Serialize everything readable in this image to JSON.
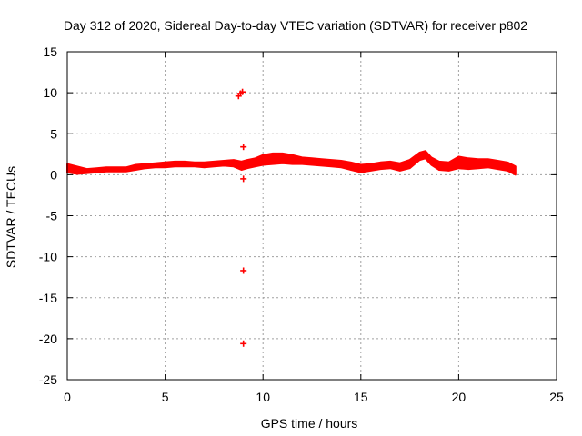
{
  "chart_data": {
    "type": "scatter",
    "title": "Day 312 of 2020, Sidereal Day-to-day VTEC variation (SDTVAR) for receiver p802",
    "xlabel": "GPS time / hours",
    "ylabel": "SDTVAR / TECUs",
    "xlim": [
      0,
      25
    ],
    "ylim": [
      -25,
      15
    ],
    "x_ticks": [
      0,
      5,
      10,
      15,
      20,
      25
    ],
    "y_ticks": [
      -25,
      -20,
      -15,
      -10,
      -5,
      0,
      5,
      10,
      15
    ],
    "x_tick_labels": [
      "0",
      "5",
      "10",
      "15",
      "20",
      "25"
    ],
    "y_tick_labels": [
      "-25",
      "-20",
      "-15",
      "-10",
      "-5",
      "0",
      "5",
      "10",
      "15"
    ],
    "grid": true,
    "marker": "+",
    "series_color": "#ff0000",
    "band": {
      "name": "SDTVAR",
      "x": [
        0.0,
        0.5,
        1.0,
        1.5,
        2.0,
        2.5,
        3.0,
        3.5,
        4.0,
        4.5,
        5.0,
        5.5,
        6.0,
        6.5,
        7.0,
        7.5,
        8.0,
        8.5,
        8.9,
        9.2,
        9.6,
        10.0,
        10.5,
        11.0,
        11.5,
        12.0,
        12.5,
        13.0,
        13.5,
        14.0,
        14.5,
        15.0,
        15.5,
        16.0,
        16.5,
        17.0,
        17.5,
        18.0,
        18.3,
        18.6,
        19.0,
        19.5,
        20.0,
        20.5,
        21.0,
        21.5,
        22.0,
        22.5,
        22.9
      ],
      "y_low": [
        0.3,
        0.1,
        0.2,
        0.3,
        0.4,
        0.4,
        0.4,
        0.6,
        0.8,
        0.9,
        0.9,
        1.0,
        1.0,
        1.0,
        0.9,
        1.0,
        1.1,
        1.0,
        0.6,
        0.8,
        1.0,
        1.2,
        1.3,
        1.4,
        1.3,
        1.3,
        1.2,
        1.1,
        1.0,
        0.9,
        0.6,
        0.3,
        0.5,
        0.7,
        0.8,
        0.5,
        0.8,
        1.8,
        2.0,
        1.2,
        0.6,
        0.5,
        0.8,
        0.7,
        0.8,
        0.9,
        0.7,
        0.5,
        0.0
      ],
      "y_high": [
        1.3,
        1.0,
        0.7,
        0.8,
        0.9,
        0.9,
        0.9,
        1.2,
        1.3,
        1.4,
        1.5,
        1.6,
        1.6,
        1.5,
        1.5,
        1.6,
        1.7,
        1.8,
        1.6,
        1.8,
        2.0,
        2.4,
        2.6,
        2.6,
        2.4,
        2.1,
        2.0,
        1.9,
        1.8,
        1.7,
        1.5,
        1.2,
        1.3,
        1.5,
        1.6,
        1.4,
        1.8,
        2.7,
        2.9,
        2.1,
        1.6,
        1.5,
        2.2,
        2.0,
        1.9,
        1.9,
        1.7,
        1.5,
        1.0
      ]
    },
    "outliers": [
      {
        "x": 8.75,
        "y": 9.6
      },
      {
        "x": 8.85,
        "y": 9.9
      },
      {
        "x": 8.95,
        "y": 10.1
      },
      {
        "x": 9.0,
        "y": 3.4
      },
      {
        "x": 9.0,
        "y": -0.5
      },
      {
        "x": 9.0,
        "y": -11.7
      },
      {
        "x": 9.0,
        "y": -20.6
      }
    ]
  }
}
